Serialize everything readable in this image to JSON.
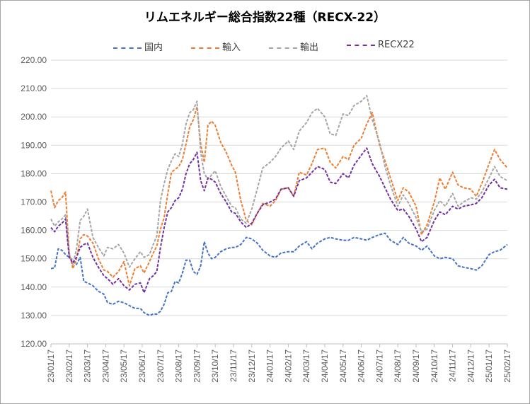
{
  "chart_data": {
    "type": "line",
    "title": "リムエネルギー総合指数22種（RECX-22）",
    "xlabel": "",
    "ylabel": "",
    "ylim": [
      120,
      220
    ],
    "yticks": [
      "120.00",
      "130.00",
      "140.00",
      "150.00",
      "160.00",
      "170.00",
      "180.00",
      "190.00",
      "200.00",
      "210.00",
      "220.00"
    ],
    "xticks": [
      "23/01/17",
      "23/02/17",
      "23/03/17",
      "23/04/17",
      "23/05/17",
      "23/06/17",
      "23/07/17",
      "23/08/17",
      "23/09/17",
      "23/10/17",
      "23/11/17",
      "23/12/17",
      "24/01/17",
      "24/02/17",
      "24/03/17",
      "24/04/17",
      "24/05/17",
      "24/06/17",
      "24/07/17",
      "24/08/17",
      "24/09/17",
      "24/10/17",
      "24/11/17",
      "24/12/17",
      "25/01/17",
      "25/02/17"
    ],
    "grid": true,
    "legend_position": "top",
    "series": [
      {
        "name": "国内",
        "color": "#4472c4",
        "x": [
          1,
          1.2,
          1.4,
          1.6,
          1.8,
          2.0,
          2.2,
          2.4,
          2.6,
          2.8,
          3.0,
          3.3,
          3.6,
          3.9,
          4.1,
          4.4,
          4.7,
          5.0,
          5.3,
          5.6,
          5.9,
          6.1,
          6.4,
          6.6,
          6.8,
          7.0,
          7.2,
          7.4,
          7.6,
          7.8,
          8.0,
          8.2,
          8.4,
          8.6,
          8.8,
          9.0,
          9.2,
          9.4,
          9.6,
          9.8,
          10.0,
          10.3,
          10.6,
          10.9,
          11.1,
          11.4,
          11.7,
          12.0,
          12.3,
          12.6,
          13.0,
          13.3,
          13.6,
          14.0,
          14.3,
          14.6,
          15.0,
          15.3,
          15.6,
          16.0,
          16.3,
          16.6,
          17.0,
          17.3,
          17.6,
          18.0,
          18.3,
          18.6,
          19.0,
          19.3,
          19.6,
          20.0,
          20.3,
          20.6,
          21.0,
          21.3,
          21.6,
          22.0,
          22.3,
          22.6,
          23.0,
          23.3,
          23.6,
          24.0,
          24.3,
          24.6,
          25.0,
          25.3,
          25.6,
          26.0
        ],
        "values": [
          146.5,
          146.8,
          153.5,
          153.0,
          151.5,
          150.5,
          149.5,
          148.0,
          150.5,
          142.0,
          141.5,
          140.5,
          138.5,
          137.5,
          134.5,
          134.0,
          135.0,
          134.5,
          133.5,
          132.5,
          132.5,
          131.0,
          130.0,
          130.5,
          130.5,
          131.5,
          134.0,
          138.0,
          138.5,
          142.0,
          141.5,
          145.0,
          149.5,
          149.5,
          145.5,
          144.5,
          147.5,
          156.0,
          152.0,
          150.0,
          150.5,
          152.5,
          153.5,
          154.0,
          154.0,
          155.0,
          157.5,
          157.0,
          155.5,
          153.0,
          151.0,
          150.5,
          152.0,
          152.5,
          152.5,
          154.5,
          156.0,
          153.5,
          155.5,
          157.0,
          157.5,
          157.0,
          156.5,
          156.5,
          157.5,
          157.0,
          156.5,
          157.5,
          158.5,
          159.0,
          156.5,
          155.0,
          157.5,
          155.5,
          154.5,
          153.0,
          154.5,
          151.0,
          150.0,
          150.5,
          150.0,
          147.5,
          147.0,
          146.5,
          146.0,
          147.5,
          151.5,
          152.5,
          153.0,
          155.0
        ]
      },
      {
        "name": "輸入",
        "color": "#ed7d31",
        "x": [
          1,
          1.2,
          1.4,
          1.6,
          1.8,
          2.0,
          2.2,
          2.4,
          2.6,
          2.8,
          3.0,
          3.3,
          3.6,
          3.9,
          4.1,
          4.4,
          4.7,
          5.0,
          5.3,
          5.6,
          5.9,
          6.1,
          6.4,
          6.6,
          6.8,
          7.0,
          7.2,
          7.4,
          7.6,
          7.8,
          8.0,
          8.2,
          8.4,
          8.6,
          8.8,
          9.0,
          9.2,
          9.4,
          9.6,
          9.8,
          10.0,
          10.3,
          10.6,
          10.9,
          11.1,
          11.4,
          11.7,
          12.0,
          12.3,
          12.6,
          13.0,
          13.3,
          13.6,
          14.0,
          14.3,
          14.6,
          15.0,
          15.3,
          15.6,
          16.0,
          16.3,
          16.6,
          17.0,
          17.3,
          17.6,
          18.0,
          18.3,
          18.6,
          19.0,
          19.3,
          19.6,
          20.0,
          20.3,
          20.6,
          21.0,
          21.3,
          21.6,
          22.0,
          22.3,
          22.6,
          23.0,
          23.3,
          23.6,
          24.0,
          24.3,
          24.6,
          25.0,
          25.3,
          25.6,
          26.0
        ],
        "values": [
          174.0,
          168.0,
          170.5,
          171.5,
          173.5,
          152.0,
          146.5,
          150.0,
          157.0,
          158.5,
          158.0,
          155.5,
          150.0,
          146.0,
          145.5,
          143.5,
          145.5,
          149.0,
          140.5,
          146.5,
          147.5,
          145.0,
          149.0,
          152.0,
          154.5,
          160.5,
          164.5,
          173.0,
          180.5,
          181.5,
          182.5,
          185.0,
          190.5,
          196.5,
          199.0,
          203.5,
          190.5,
          184.0,
          197.0,
          198.5,
          197.0,
          191.0,
          187.5,
          183.0,
          180.5,
          170.5,
          163.5,
          162.0,
          166.0,
          169.5,
          168.5,
          170.5,
          174.5,
          175.0,
          172.0,
          180.5,
          179.5,
          183.5,
          188.5,
          189.0,
          184.0,
          182.0,
          186.0,
          185.0,
          190.0,
          192.5,
          197.5,
          201.5,
          190.0,
          184.5,
          178.5,
          170.5,
          175.0,
          173.5,
          168.5,
          158.5,
          162.0,
          170.0,
          178.5,
          174.5,
          180.5,
          176.0,
          175.0,
          174.5,
          172.0,
          176.5,
          183.5,
          188.5,
          185.0,
          182.0
        ]
      },
      {
        "name": "輸出",
        "color": "#a5a5a5",
        "x": [
          1,
          1.2,
          1.4,
          1.6,
          1.8,
          2.0,
          2.2,
          2.4,
          2.6,
          2.8,
          3.0,
          3.3,
          3.6,
          3.9,
          4.1,
          4.4,
          4.7,
          5.0,
          5.3,
          5.6,
          5.9,
          6.1,
          6.4,
          6.6,
          6.8,
          7.0,
          7.2,
          7.4,
          7.6,
          7.8,
          8.0,
          8.2,
          8.4,
          8.6,
          8.8,
          9.0,
          9.2,
          9.4,
          9.6,
          9.8,
          10.0,
          10.3,
          10.6,
          10.9,
          11.1,
          11.4,
          11.7,
          12.0,
          12.3,
          12.6,
          13.0,
          13.3,
          13.6,
          14.0,
          14.3,
          14.6,
          15.0,
          15.3,
          15.6,
          16.0,
          16.3,
          16.6,
          17.0,
          17.3,
          17.6,
          18.0,
          18.3,
          18.6,
          19.0,
          19.3,
          19.6,
          20.0,
          20.3,
          20.6,
          21.0,
          21.3,
          21.6,
          22.0,
          22.3,
          22.6,
          23.0,
          23.3,
          23.6,
          24.0,
          24.3,
          24.6,
          25.0,
          25.3,
          25.6,
          26.0
        ],
        "values": [
          164.0,
          161.5,
          163.0,
          164.0,
          165.5,
          151.5,
          148.0,
          153.5,
          163.5,
          165.0,
          167.5,
          157.5,
          154.0,
          151.0,
          154.0,
          153.5,
          155.0,
          152.0,
          147.0,
          150.0,
          152.5,
          150.5,
          151.5,
          155.0,
          158.0,
          170.5,
          176.5,
          181.5,
          184.5,
          187.0,
          186.0,
          190.5,
          197.5,
          201.5,
          202.5,
          205.5,
          187.5,
          180.0,
          178.0,
          179.5,
          181.0,
          175.5,
          172.0,
          168.5,
          168.0,
          164.0,
          162.5,
          167.5,
          174.5,
          182.0,
          184.0,
          186.0,
          189.0,
          191.5,
          188.5,
          195.0,
          198.0,
          201.5,
          203.0,
          200.0,
          194.0,
          193.5,
          201.0,
          200.5,
          204.0,
          205.5,
          207.5,
          199.0,
          191.0,
          182.5,
          176.0,
          168.5,
          172.5,
          169.5,
          164.5,
          159.5,
          160.5,
          167.0,
          170.5,
          168.5,
          173.0,
          168.5,
          170.0,
          171.5,
          171.0,
          173.5,
          178.5,
          182.5,
          179.0,
          177.5
        ]
      },
      {
        "name": "RECX22",
        "color": "#7030a0",
        "x": [
          1,
          1.2,
          1.4,
          1.6,
          1.8,
          2.0,
          2.2,
          2.4,
          2.6,
          2.8,
          3.0,
          3.3,
          3.6,
          3.9,
          4.1,
          4.4,
          4.7,
          5.0,
          5.3,
          5.6,
          5.9,
          6.1,
          6.4,
          6.6,
          6.8,
          7.0,
          7.2,
          7.4,
          7.6,
          7.8,
          8.0,
          8.2,
          8.4,
          8.6,
          8.8,
          9.0,
          9.2,
          9.4,
          9.6,
          9.8,
          10.0,
          10.3,
          10.6,
          10.9,
          11.1,
          11.4,
          11.7,
          12.0,
          12.3,
          12.6,
          13.0,
          13.3,
          13.6,
          14.0,
          14.3,
          14.6,
          15.0,
          15.3,
          15.6,
          16.0,
          16.3,
          16.6,
          17.0,
          17.3,
          17.6,
          18.0,
          18.3,
          18.6,
          19.0,
          19.3,
          19.6,
          20.0,
          20.3,
          20.6,
          21.0,
          21.3,
          21.6,
          22.0,
          22.3,
          22.6,
          23.0,
          23.3,
          23.6,
          24.0,
          24.3,
          24.6,
          25.0,
          25.3,
          25.6,
          26.0
        ],
        "values": [
          161.0,
          159.5,
          161.5,
          162.5,
          164.0,
          150.5,
          148.5,
          150.5,
          154.0,
          155.0,
          155.5,
          150.5,
          147.0,
          144.0,
          143.0,
          141.0,
          143.0,
          140.5,
          139.0,
          141.0,
          141.5,
          138.0,
          143.0,
          144.0,
          145.5,
          154.0,
          161.0,
          166.5,
          168.0,
          170.5,
          171.5,
          174.5,
          180.0,
          183.5,
          185.0,
          187.5,
          177.5,
          174.0,
          178.5,
          178.0,
          177.0,
          173.0,
          170.0,
          166.5,
          166.0,
          163.0,
          161.0,
          162.5,
          166.0,
          169.0,
          170.0,
          171.0,
          174.5,
          175.0,
          172.0,
          177.5,
          178.5,
          180.5,
          182.5,
          181.5,
          177.0,
          176.5,
          180.0,
          178.5,
          183.0,
          186.5,
          189.0,
          183.5,
          179.0,
          175.0,
          171.0,
          167.0,
          167.5,
          165.0,
          160.5,
          156.0,
          157.5,
          163.5,
          166.5,
          165.5,
          168.5,
          167.5,
          168.5,
          169.0,
          169.5,
          171.5,
          176.0,
          178.0,
          175.0,
          174.5
        ]
      }
    ]
  }
}
